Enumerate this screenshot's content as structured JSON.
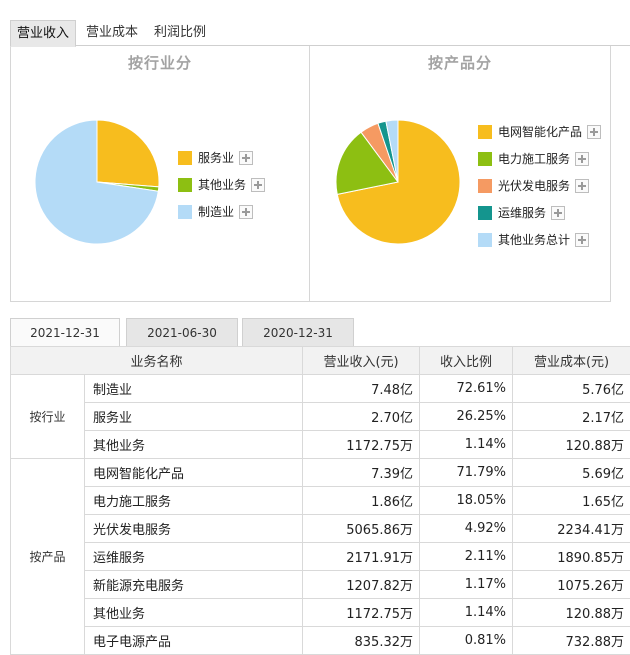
{
  "top_tabs": [
    "营业收入",
    "营业成本",
    "利润比例"
  ],
  "panels": [
    {
      "title": "按行业分",
      "legend": [
        {
          "label": "服务业",
          "color": "#f7bd1e"
        },
        {
          "label": "其他业务",
          "color": "#8dbf12"
        },
        {
          "label": "制造业",
          "color": "#b4dbf7"
        }
      ]
    },
    {
      "title": "按产品分",
      "legend": [
        {
          "label": "电网智能化产品",
          "color": "#f7bd1e"
        },
        {
          "label": "电力施工服务",
          "color": "#8dbf12"
        },
        {
          "label": "光伏发电服务",
          "color": "#f59a62"
        },
        {
          "label": "运维服务",
          "color": "#14958e"
        },
        {
          "label": "其他业务总计",
          "color": "#b4dbf7"
        }
      ]
    }
  ],
  "chart_data": [
    {
      "type": "pie",
      "title": "按行业分",
      "slices": [
        {
          "name": "服务业",
          "value": 26.25,
          "color": "#f7bd1e"
        },
        {
          "name": "其他业务",
          "value": 1.14,
          "color": "#8dbf12"
        },
        {
          "name": "制造业",
          "value": 72.61,
          "color": "#b4dbf7"
        }
      ],
      "legend_position": "right"
    },
    {
      "type": "pie",
      "title": "按产品分",
      "slices": [
        {
          "name": "电网智能化产品",
          "value": 71.79,
          "color": "#f7bd1e"
        },
        {
          "name": "电力施工服务",
          "value": 18.05,
          "color": "#8dbf12"
        },
        {
          "name": "光伏发电服务",
          "value": 4.92,
          "color": "#f59a62"
        },
        {
          "name": "运维服务",
          "value": 2.11,
          "color": "#14958e"
        },
        {
          "name": "其他业务总计",
          "value": 3.13,
          "color": "#b4dbf7"
        }
      ],
      "legend_position": "right"
    }
  ],
  "date_tabs": [
    "2021-12-31",
    "2021-06-30",
    "2020-12-31"
  ],
  "table": {
    "headers": [
      "业务名称",
      "营业收入(元)",
      "收入比例",
      "营业成本(元)"
    ],
    "groups": [
      {
        "category": "按行业",
        "rows": [
          [
            "制造业",
            "7.48亿",
            "72.61%",
            "5.76亿"
          ],
          [
            "服务业",
            "2.70亿",
            "26.25%",
            "2.17亿"
          ],
          [
            "其他业务",
            "1172.75万",
            "1.14%",
            "120.88万"
          ]
        ]
      },
      {
        "category": "按产品",
        "rows": [
          [
            "电网智能化产品",
            "7.39亿",
            "71.79%",
            "5.69亿"
          ],
          [
            "电力施工服务",
            "1.86亿",
            "18.05%",
            "1.65亿"
          ],
          [
            "光伏发电服务",
            "5065.86万",
            "4.92%",
            "2234.41万"
          ],
          [
            "运维服务",
            "2171.91万",
            "2.11%",
            "1890.85万"
          ],
          [
            "新能源充电服务",
            "1207.82万",
            "1.17%",
            "1075.26万"
          ],
          [
            "其他业务",
            "1172.75万",
            "1.14%",
            "120.88万"
          ],
          [
            "电子电源产品",
            "835.32万",
            "0.81%",
            "732.88万"
          ]
        ]
      }
    ]
  }
}
